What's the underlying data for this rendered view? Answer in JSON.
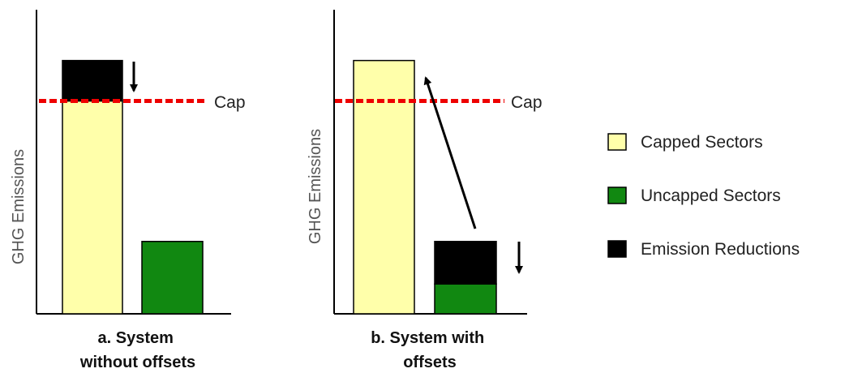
{
  "chart_data": [
    {
      "type": "bar",
      "stacked": true,
      "title": "a. System\nwithout offsets",
      "ylabel": "GHG Emissions",
      "categories": [
        "Capped Sectors",
        "Uncapped Sectors"
      ],
      "series": [
        {
          "name": "Capped Sectors",
          "values": [
            100,
            0
          ]
        },
        {
          "name": "Uncapped Sectors",
          "values": [
            0,
            34
          ]
        },
        {
          "name": "Emission Reductions",
          "values": [
            19,
            0
          ]
        }
      ],
      "cap": {
        "label": "Cap",
        "value": 100
      },
      "ylim": [
        0,
        120
      ],
      "annotations": [
        "down arrow above capped-sector reductions"
      ]
    },
    {
      "type": "bar",
      "stacked": true,
      "title": "b. System with\noffsets",
      "ylabel": "GHG Emissions",
      "categories": [
        "Capped Sectors",
        "Uncapped Sectors"
      ],
      "series": [
        {
          "name": "Capped Sectors",
          "values": [
            119,
            0
          ]
        },
        {
          "name": "Uncapped Sectors",
          "values": [
            0,
            14
          ]
        },
        {
          "name": "Emission Reductions",
          "values": [
            0,
            20
          ]
        }
      ],
      "cap": {
        "label": "Cap",
        "value": 100
      },
      "ylim": [
        0,
        120
      ],
      "annotations": [
        "arrow from uncapped reductions up to capped sectors",
        "down arrow beside uncapped reductions"
      ]
    }
  ],
  "legend": {
    "placement": "right",
    "items": [
      {
        "label": "Capped Sectors",
        "color": "#ffffaa"
      },
      {
        "label": "Uncapped Sectors",
        "color": "#118811"
      },
      {
        "label": "Emission Reductions",
        "color": "#000000"
      }
    ]
  },
  "colors": {
    "cap_line": "#ee0000",
    "outline": "#000000"
  }
}
